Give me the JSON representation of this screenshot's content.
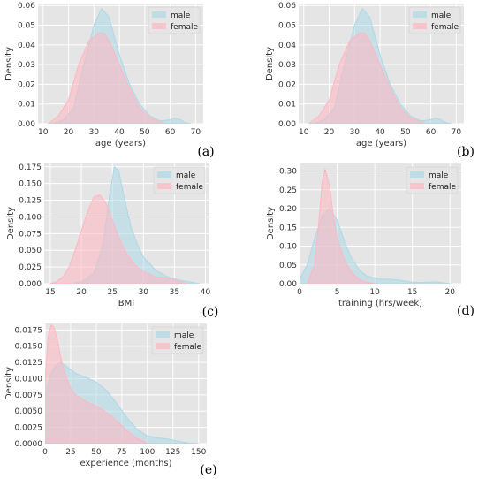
{
  "colors": {
    "male": "#add8e6",
    "female": "#ffb6c1",
    "panel_bg": "#e5e5e5",
    "grid": "#ffffff"
  },
  "chart_data": [
    {
      "id": "a",
      "panel_label": "(a)",
      "type": "area",
      "xlabel": "age (years)",
      "ylabel": "Density",
      "xlim": [
        8,
        73
      ],
      "ylim": [
        0,
        0.061
      ],
      "xticks": [
        "10",
        "20",
        "30",
        "40",
        "50",
        "60",
        "70"
      ],
      "yticks": [
        "0.00",
        "0.01",
        "0.02",
        "0.03",
        "0.04",
        "0.05",
        "0.06"
      ],
      "legend": "top-right",
      "grid": true,
      "series": [
        {
          "name": "male",
          "x": [
            14,
            18,
            22,
            26,
            30,
            33,
            36,
            40,
            44,
            48,
            52,
            56,
            60,
            62,
            64,
            66,
            68
          ],
          "y": [
            0,
            0.002,
            0.008,
            0.03,
            0.05,
            0.0585,
            0.054,
            0.035,
            0.02,
            0.01,
            0.004,
            0.0015,
            0.002,
            0.003,
            0.002,
            0.0005,
            0
          ]
        },
        {
          "name": "female",
          "x": [
            12,
            16,
            20,
            24,
            28,
            32,
            34,
            36,
            40,
            44,
            48,
            52,
            56,
            58
          ],
          "y": [
            0,
            0.004,
            0.012,
            0.03,
            0.042,
            0.046,
            0.046,
            0.042,
            0.03,
            0.018,
            0.008,
            0.003,
            0.001,
            0
          ]
        }
      ]
    },
    {
      "id": "b",
      "panel_label": "(b)",
      "type": "area",
      "xlabel": "age (years)",
      "ylabel": "Density",
      "xlim": [
        8,
        73
      ],
      "ylim": [
        0,
        0.061
      ],
      "xticks": [
        "10",
        "20",
        "30",
        "40",
        "50",
        "60",
        "70"
      ],
      "yticks": [
        "0.00",
        "0.01",
        "0.02",
        "0.03",
        "0.04",
        "0.05",
        "0.06"
      ],
      "legend": "top-right",
      "grid": true,
      "series": [
        {
          "name": "male",
          "x": [
            14,
            18,
            22,
            26,
            30,
            33,
            36,
            40,
            44,
            48,
            52,
            56,
            60,
            62,
            64,
            66,
            68
          ],
          "y": [
            0,
            0.002,
            0.008,
            0.03,
            0.05,
            0.0585,
            0.054,
            0.035,
            0.02,
            0.01,
            0.004,
            0.0015,
            0.002,
            0.003,
            0.002,
            0.0005,
            0
          ]
        },
        {
          "name": "female",
          "x": [
            12,
            16,
            20,
            24,
            28,
            32,
            34,
            36,
            40,
            44,
            48,
            52,
            56,
            58
          ],
          "y": [
            0,
            0.004,
            0.012,
            0.03,
            0.042,
            0.046,
            0.046,
            0.042,
            0.03,
            0.018,
            0.008,
            0.003,
            0.001,
            0
          ]
        }
      ]
    },
    {
      "id": "c",
      "panel_label": "(c)",
      "type": "area",
      "xlabel": "BMI",
      "ylabel": "Density",
      "xlim": [
        14,
        40.5
      ],
      "ylim": [
        0,
        0.18
      ],
      "xticks": [
        "15",
        "20",
        "25",
        "30",
        "35",
        "40"
      ],
      "yticks": [
        "0.000",
        "0.025",
        "0.050",
        "0.075",
        "0.100",
        "0.125",
        "0.150",
        "0.175"
      ],
      "legend": "top-right",
      "grid": true,
      "series": [
        {
          "name": "male",
          "x": [
            18,
            20,
            22,
            23.5,
            24.5,
            25.3,
            26,
            27,
            28,
            29,
            30,
            32,
            34,
            36,
            38,
            39
          ],
          "y": [
            0,
            0.003,
            0.015,
            0.06,
            0.13,
            0.175,
            0.17,
            0.125,
            0.085,
            0.06,
            0.04,
            0.02,
            0.01,
            0.005,
            0.002,
            0
          ]
        },
        {
          "name": "female",
          "x": [
            15,
            16,
            17,
            18,
            19,
            20,
            21,
            22,
            23,
            24,
            25,
            26,
            27,
            28,
            29,
            30,
            32,
            34,
            36,
            37
          ],
          "y": [
            0,
            0.003,
            0.01,
            0.025,
            0.05,
            0.08,
            0.108,
            0.13,
            0.133,
            0.12,
            0.095,
            0.07,
            0.05,
            0.035,
            0.025,
            0.018,
            0.01,
            0.008,
            0.003,
            0
          ]
        }
      ]
    },
    {
      "id": "d",
      "panel_label": "(d)",
      "type": "area",
      "xlabel": "training (hrs/week)",
      "ylabel": "Density",
      "xlim": [
        0,
        21.5
      ],
      "ylim": [
        0,
        0.32
      ],
      "xticks": [
        "0",
        "5",
        "10",
        "15",
        "20"
      ],
      "yticks": [
        "0.00",
        "0.05",
        "0.10",
        "0.15",
        "0.20",
        "0.25",
        "0.30"
      ],
      "legend": "top-right",
      "grid": true,
      "series": [
        {
          "name": "male",
          "x": [
            0,
            1,
            2,
            3,
            4,
            5,
            6,
            7,
            8,
            9,
            10,
            11,
            12,
            13,
            14,
            15,
            16,
            17,
            18,
            19,
            20
          ],
          "y": [
            0.01,
            0.05,
            0.12,
            0.18,
            0.2,
            0.17,
            0.11,
            0.065,
            0.035,
            0.02,
            0.015,
            0.012,
            0.012,
            0.01,
            0.007,
            0.004,
            0.003,
            0.004,
            0.005,
            0.003,
            0
          ]
        },
        {
          "name": "female",
          "x": [
            1,
            2,
            2.5,
            3,
            3.4,
            4,
            4.5,
            5,
            6,
            7,
            8,
            9,
            10
          ],
          "y": [
            0,
            0.05,
            0.15,
            0.27,
            0.305,
            0.26,
            0.18,
            0.12,
            0.06,
            0.03,
            0.01,
            0.004,
            0
          ]
        }
      ]
    },
    {
      "id": "e",
      "panel_label": "(e)",
      "type": "area",
      "xlabel": "experience (months)",
      "ylabel": "Density",
      "xlim": [
        0,
        158
      ],
      "ylim": [
        0,
        0.0185
      ],
      "xticks": [
        "0",
        "25",
        "50",
        "75",
        "100",
        "125",
        "150"
      ],
      "yticks": [
        "0.0000",
        "0.0025",
        "0.0050",
        "0.0075",
        "0.0100",
        "0.0125",
        "0.0150",
        "0.0175"
      ],
      "legend": "top-right",
      "grid": true,
      "series": [
        {
          "name": "male",
          "x": [
            0,
            5,
            10,
            15,
            20,
            30,
            40,
            50,
            60,
            70,
            80,
            90,
            100,
            110,
            120,
            130,
            140,
            150
          ],
          "y": [
            0.007,
            0.0105,
            0.012,
            0.0125,
            0.012,
            0.0108,
            0.0102,
            0.0095,
            0.0082,
            0.0062,
            0.004,
            0.0022,
            0.0012,
            0.0009,
            0.0007,
            0.0004,
            0.0001,
            0
          ]
        },
        {
          "name": "female",
          "x": [
            0,
            3,
            6,
            9,
            12,
            15,
            20,
            25,
            30,
            40,
            50,
            60,
            70,
            80,
            90,
            100
          ],
          "y": [
            0.01,
            0.0165,
            0.0183,
            0.0178,
            0.016,
            0.0135,
            0.0105,
            0.0085,
            0.0075,
            0.0065,
            0.0058,
            0.0048,
            0.0035,
            0.002,
            0.0008,
            0
          ]
        }
      ]
    }
  ]
}
